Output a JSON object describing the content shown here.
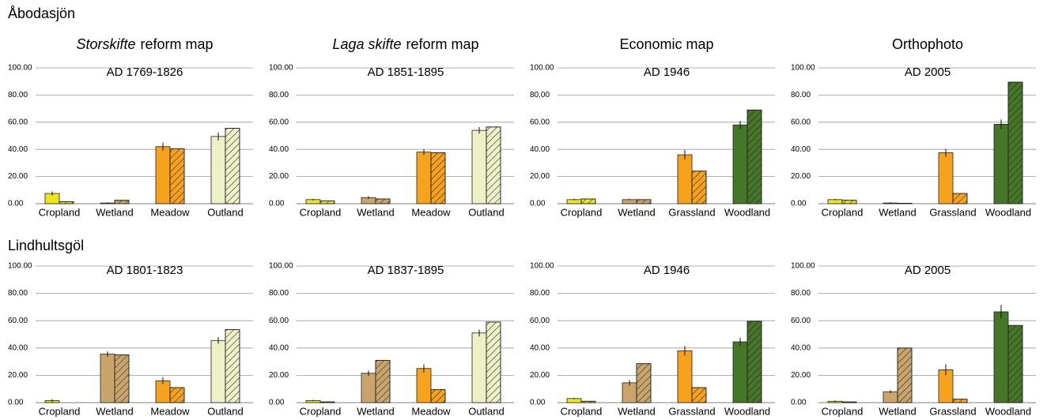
{
  "row_labels": [
    "Åbodasjön",
    "Lindhultsgöl"
  ],
  "column_titles": [
    {
      "emphasis": "Storskifte",
      "text": "reform map"
    },
    {
      "emphasis": "Laga skifte",
      "text": "reform map"
    },
    {
      "text": "Economic map"
    },
    {
      "text": "Orthophoto"
    }
  ],
  "chart_data": [
    {
      "type": "bar",
      "title": "AD 1769-1826",
      "categories": [
        "Cropland",
        "Wetland",
        "Meadow",
        "Outland"
      ],
      "colors": [
        "#ede51e",
        "#c9a56c",
        "#f6a21c",
        "#eef0c6"
      ],
      "series": [
        {
          "pattern": "solid",
          "values": [
            7.5,
            0.5,
            42,
            49.5
          ],
          "errors": [
            1.5,
            0.5,
            3,
            3
          ]
        },
        {
          "pattern": "hatched",
          "values": [
            1.5,
            2.5,
            40.5,
            55.5
          ]
        }
      ],
      "ylim": [
        0,
        100
      ],
      "yticks": [
        {
          "value": 0,
          "label": "0.00"
        },
        {
          "value": 20,
          "label": "20.00"
        },
        {
          "value": 40,
          "label": "40.00"
        },
        {
          "value": 60,
          "label": "60.00"
        },
        {
          "value": 80,
          "label": "80.00"
        },
        {
          "value": 100,
          "label": "100.00"
        }
      ],
      "grid": true
    },
    {
      "type": "bar",
      "title": "AD 1851-1895",
      "categories": [
        "Cropland",
        "Wetland",
        "Meadow",
        "Outland"
      ],
      "colors": [
        "#ede51e",
        "#c9a56c",
        "#f6a21c",
        "#eef0c6"
      ],
      "series": [
        {
          "pattern": "solid",
          "values": [
            3,
            4.5,
            38,
            54
          ],
          "errors": [
            0.5,
            1,
            2,
            2.5
          ]
        },
        {
          "pattern": "hatched",
          "values": [
            2,
            3.5,
            37.5,
            56.5
          ]
        }
      ],
      "ylim": [
        0,
        100
      ],
      "yticks": [
        {
          "value": 0,
          "label": "0.00"
        },
        {
          "value": 20,
          "label": "20.00"
        },
        {
          "value": 40,
          "label": "40.00"
        },
        {
          "value": 60,
          "label": "60.00"
        },
        {
          "value": 80,
          "label": "80.00"
        },
        {
          "value": 100,
          "label": "100.00"
        }
      ],
      "grid": true
    },
    {
      "type": "bar",
      "title": "AD 1946",
      "categories": [
        "Cropland",
        "Wetland",
        "Grassland",
        "Woodland"
      ],
      "colors": [
        "#ede51e",
        "#c9a56c",
        "#f6a21c",
        "#467627"
      ],
      "series": [
        {
          "pattern": "solid",
          "values": [
            3,
            3,
            36,
            58
          ],
          "errors": [
            0.5,
            0.5,
            3.5,
            3
          ]
        },
        {
          "pattern": "hatched",
          "values": [
            3.5,
            3,
            24,
            69
          ]
        }
      ],
      "ylim": [
        0,
        100
      ],
      "yticks": [
        {
          "value": 0,
          "label": "0.00"
        },
        {
          "value": 20,
          "label": "20.00"
        },
        {
          "value": 40,
          "label": "40.00"
        },
        {
          "value": 60,
          "label": "60.00"
        },
        {
          "value": 80,
          "label": "80.00"
        },
        {
          "value": 100,
          "label": "100.00"
        }
      ],
      "grid": true
    },
    {
      "type": "bar",
      "title": "AD 2005",
      "categories": [
        "Cropland",
        "Wetland",
        "Grassland",
        "Woodland"
      ],
      "colors": [
        "#ede51e",
        "#c9a56c",
        "#f6a21c",
        "#467627"
      ],
      "series": [
        {
          "pattern": "solid",
          "values": [
            3,
            0.5,
            37.5,
            58.5
          ],
          "errors": [
            0.5,
            0.5,
            3,
            3.5
          ]
        },
        {
          "pattern": "hatched",
          "values": [
            2.5,
            0.3,
            7.5,
            89.5
          ]
        }
      ],
      "ylim": [
        0,
        100
      ],
      "yticks": [
        {
          "value": 0,
          "label": "0.00"
        },
        {
          "value": 20,
          "label": "20.00"
        },
        {
          "value": 40,
          "label": "40.00"
        },
        {
          "value": 60,
          "label": "60.00"
        },
        {
          "value": 80,
          "label": "80.00"
        },
        {
          "value": 100,
          "label": "100.00"
        }
      ],
      "grid": true
    },
    {
      "type": "bar",
      "title": "AD 1801-1823",
      "categories": [
        "Cropland",
        "Wetland",
        "Meadow",
        "Outland"
      ],
      "colors": [
        "#ede51e",
        "#c9a56c",
        "#f6a21c",
        "#eef0c6"
      ],
      "series": [
        {
          "pattern": "solid",
          "values": [
            1.5,
            35.5,
            16,
            45.5
          ],
          "errors": [
            1,
            2,
            2.5,
            2.5
          ]
        },
        {
          "pattern": "hatched",
          "values": [
            0,
            35,
            11,
            53.5
          ]
        }
      ],
      "ylim": [
        0,
        100
      ],
      "yticks": [
        {
          "value": 0,
          "label": "0.00"
        },
        {
          "value": 20,
          "label": "20.00"
        },
        {
          "value": 40,
          "label": "40.00"
        },
        {
          "value": 60,
          "label": "60.00"
        },
        {
          "value": 80,
          "label": "80.00"
        },
        {
          "value": 100,
          "label": "100.00"
        }
      ],
      "grid": true
    },
    {
      "type": "bar",
      "title": "AD 1837-1895",
      "categories": [
        "Cropland",
        "Wetland",
        "Meadow",
        "Outland"
      ],
      "colors": [
        "#ede51e",
        "#c9a56c",
        "#f6a21c",
        "#eef0c6"
      ],
      "series": [
        {
          "pattern": "solid",
          "values": [
            1.5,
            21.5,
            25,
            51
          ],
          "errors": [
            0.5,
            2,
            3,
            2.5
          ]
        },
        {
          "pattern": "hatched",
          "values": [
            0.5,
            31,
            9.5,
            59
          ]
        }
      ],
      "ylim": [
        0,
        100
      ],
      "yticks": [
        {
          "value": 0,
          "label": "0.00"
        },
        {
          "value": 20,
          "label": "20.00"
        },
        {
          "value": 40,
          "label": "40.00"
        },
        {
          "value": 60,
          "label": "60.00"
        },
        {
          "value": 80,
          "label": "80.00"
        },
        {
          "value": 100,
          "label": "100.00"
        }
      ],
      "grid": true
    },
    {
      "type": "bar",
      "title": "AD 1946",
      "categories": [
        "Cropland",
        "Wetland",
        "Grassland",
        "Woodland"
      ],
      "colors": [
        "#ede51e",
        "#c9a56c",
        "#f6a21c",
        "#467627"
      ],
      "series": [
        {
          "pattern": "solid",
          "values": [
            3,
            14.5,
            38,
            44.5
          ],
          "errors": [
            0.5,
            2,
            3.5,
            3
          ]
        },
        {
          "pattern": "hatched",
          "values": [
            1,
            28.5,
            11,
            59.5
          ]
        }
      ],
      "ylim": [
        0,
        100
      ],
      "yticks": [
        {
          "value": 0,
          "label": "0.00"
        },
        {
          "value": 20,
          "label": "20.00"
        },
        {
          "value": 40,
          "label": "40.00"
        },
        {
          "value": 60,
          "label": "60.00"
        },
        {
          "value": 80,
          "label": "80.00"
        },
        {
          "value": 100,
          "label": "100.00"
        }
      ],
      "grid": true
    },
    {
      "type": "bar",
      "title": "AD 2005",
      "categories": [
        "Cropland",
        "Wetland",
        "Grassland",
        "Woodland"
      ],
      "colors": [
        "#ede51e",
        "#c9a56c",
        "#f6a21c",
        "#467627"
      ],
      "series": [
        {
          "pattern": "solid",
          "values": [
            1,
            8,
            24,
            66.5
          ],
          "errors": [
            0.5,
            1,
            4,
            5
          ]
        },
        {
          "pattern": "hatched",
          "values": [
            0.5,
            40,
            2.5,
            56.5
          ]
        }
      ],
      "ylim": [
        0,
        100
      ],
      "yticks": [
        {
          "value": 0,
          "label": "0.00"
        },
        {
          "value": 20,
          "label": "20.00"
        },
        {
          "value": 40,
          "label": "40.00"
        },
        {
          "value": 60,
          "label": "60.00"
        },
        {
          "value": 80,
          "label": "80.00"
        },
        {
          "value": 100,
          "label": "100.00"
        }
      ],
      "grid": true
    }
  ]
}
